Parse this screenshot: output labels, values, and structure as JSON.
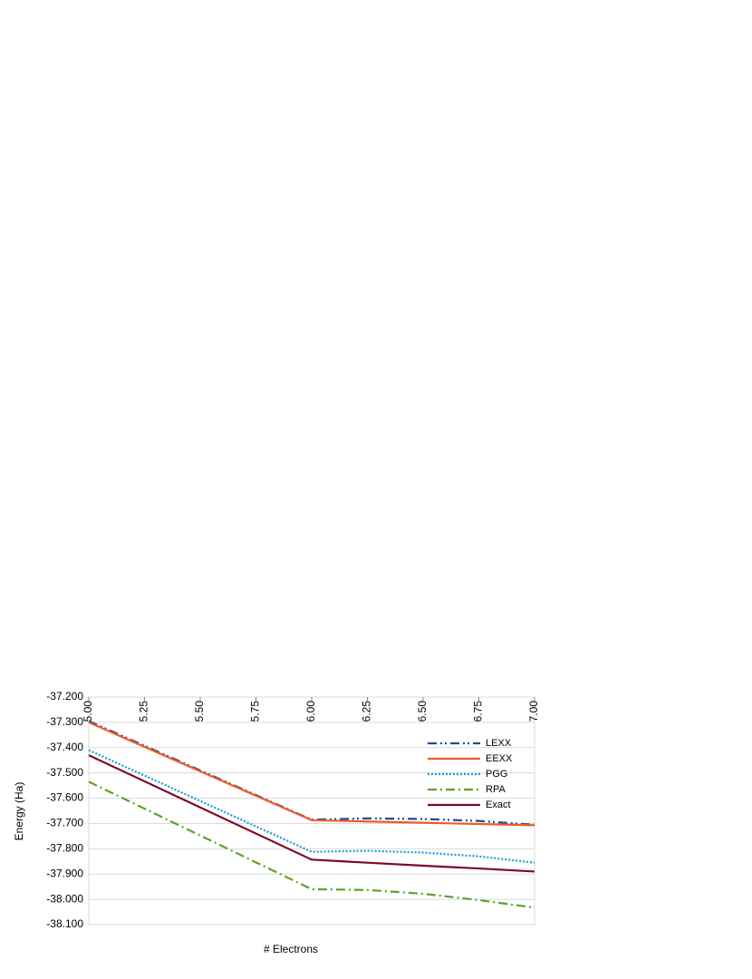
{
  "chart_data": {
    "type": "line",
    "xlabel": "# Electrons",
    "ylabel": "Energy (Ha)",
    "x": [
      5,
      6,
      6.25,
      6.5,
      6.75,
      7
    ],
    "series": [
      {
        "name": "LEXX",
        "color": "#1f4e8c",
        "dash": "dash-dot-dot",
        "values": [
          -37.295,
          -37.685,
          -37.68,
          -37.682,
          -37.69,
          -37.705
        ]
      },
      {
        "name": "EEXX",
        "color": "#f05a28",
        "dash": "solid",
        "values": [
          -37.3,
          -37.687,
          -37.692,
          -37.697,
          -37.702,
          -37.707
        ]
      },
      {
        "name": "PGG",
        "color": "#1a9ad6",
        "dash": "dotted",
        "values": [
          -37.41,
          -37.812,
          -37.808,
          -37.815,
          -37.83,
          -37.855
        ]
      },
      {
        "name": "RPA",
        "color": "#5ea128",
        "dash": "dash-dot",
        "values": [
          -37.535,
          -37.96,
          -37.963,
          -37.978,
          -38.003,
          -38.033
        ]
      },
      {
        "name": "Exact",
        "color": "#7b0a2a",
        "dash": "solid",
        "values": [
          -37.43,
          -37.843,
          -37.855,
          -37.867,
          -37.878,
          -37.89
        ]
      }
    ],
    "xlim": [
      5,
      7
    ],
    "xticks": [
      {
        "value": 5,
        "label": "5.00"
      },
      {
        "value": 5.25,
        "label": "5.25"
      },
      {
        "value": 5.5,
        "label": "5.50"
      },
      {
        "value": 5.75,
        "label": "5.75"
      },
      {
        "value": 6,
        "label": "6.00"
      },
      {
        "value": 6.25,
        "label": "6.25"
      },
      {
        "value": 6.5,
        "label": "6.50"
      },
      {
        "value": 6.75,
        "label": "6.75"
      },
      {
        "value": 7,
        "label": "7.00"
      }
    ],
    "ylim": [
      -38.1,
      -37.2
    ],
    "yticks": [
      {
        "value": -37.2,
        "label": "-37.200"
      },
      {
        "value": -37.3,
        "label": "-37.300"
      },
      {
        "value": -37.4,
        "label": "-37.400"
      },
      {
        "value": -37.5,
        "label": "-37.500"
      },
      {
        "value": -37.6,
        "label": "-37.600"
      },
      {
        "value": -37.7,
        "label": "-37.700"
      },
      {
        "value": -37.8,
        "label": "-37.800"
      },
      {
        "value": -37.9,
        "label": "-37.900"
      },
      {
        "value": -38.0,
        "label": "-38.000"
      },
      {
        "value": -38.1,
        "label": "-38.100"
      }
    ],
    "grid": true,
    "legend": "right"
  }
}
